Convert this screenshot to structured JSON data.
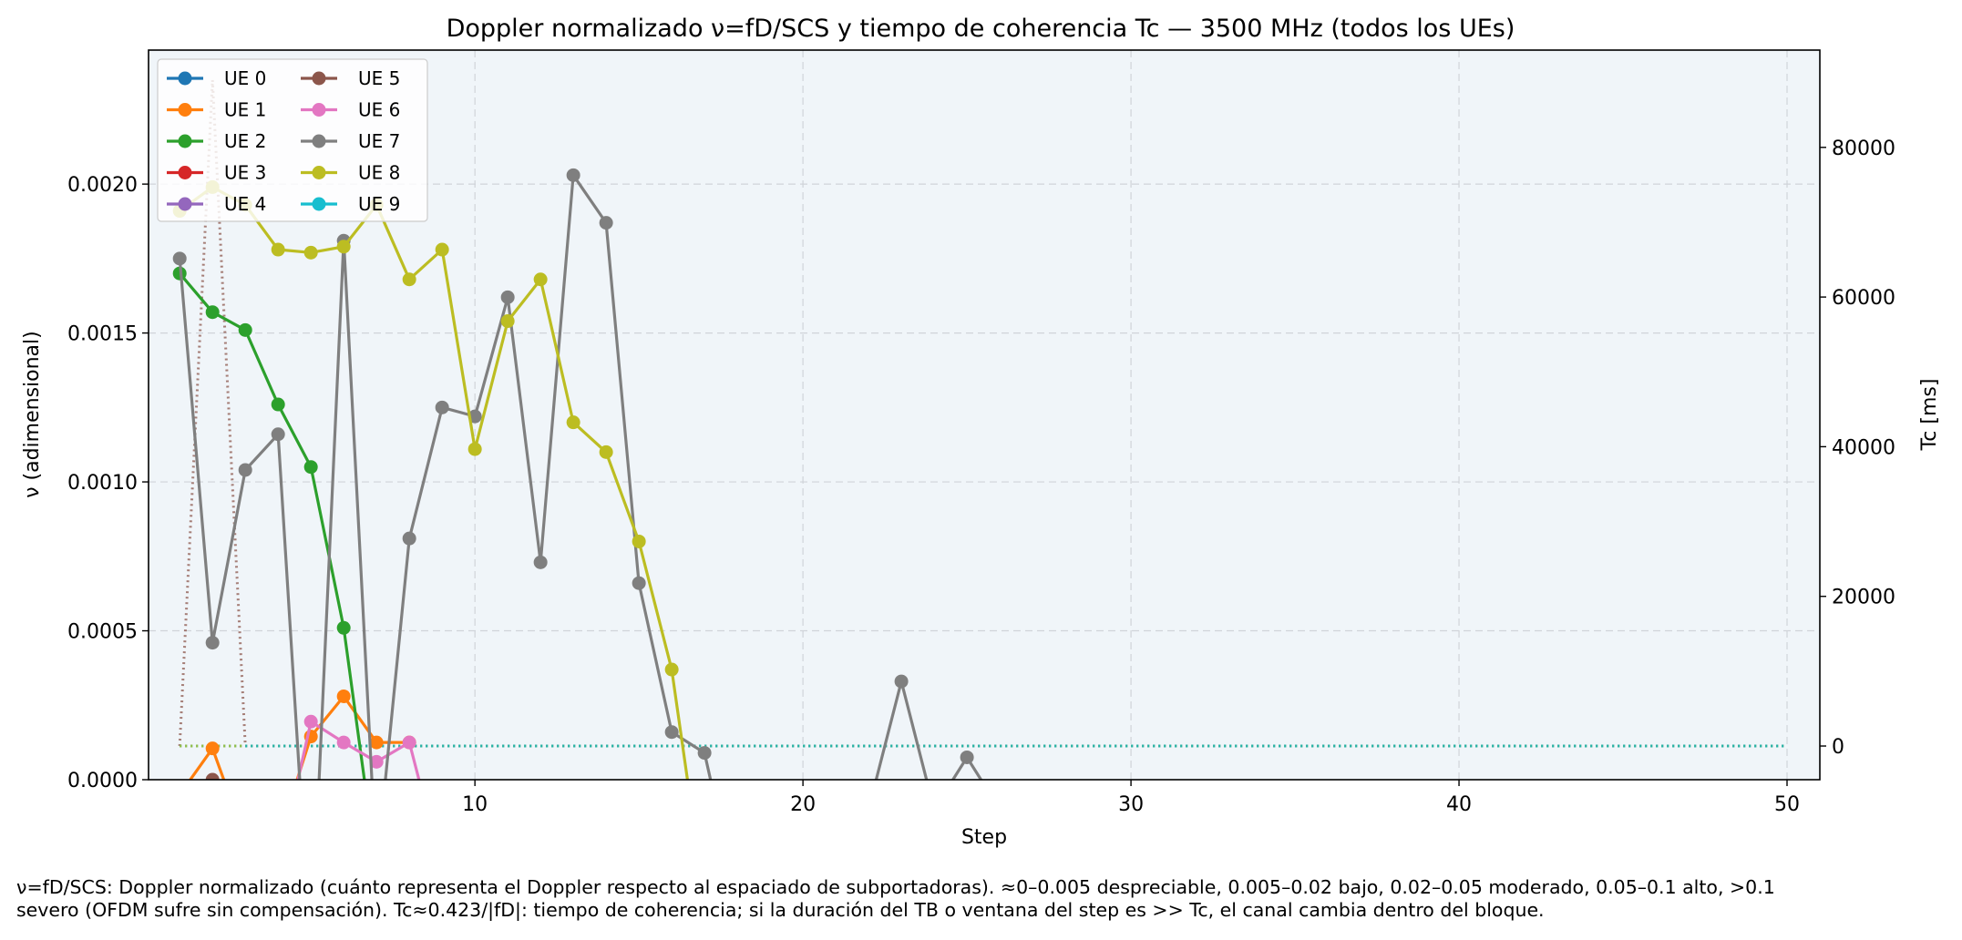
{
  "chart_data": {
    "type": "line",
    "title": "Doppler normalizado ν=fD/SCS y tiempo de coherencia Tc — 3500 MHz (todos los UEs)",
    "xlabel": "Step",
    "ylabel": "ν (adimensional)",
    "y2label": "Tc [ms]",
    "xlim": [
      0.05,
      51
    ],
    "ylim": [
      0,
      0.00245
    ],
    "y2lim": [
      -4500,
      93000
    ],
    "xticks": [
      10,
      20,
      30,
      40,
      50
    ],
    "yticks": [
      0,
      0.0005,
      0.001,
      0.0015,
      0.002
    ],
    "ytick_labels": [
      "0.0000",
      "0.0005",
      "0.0010",
      "0.0015",
      "0.0020"
    ],
    "y2ticks": [
      0,
      20000,
      40000,
      60000,
      80000
    ],
    "y2tick_labels": [
      "0",
      "20000",
      "40000",
      "60000",
      "80000"
    ],
    "grid": true,
    "legend_position": "top-left",
    "plot_background": "#f0f5f9",
    "series": [
      {
        "name": "UE 0",
        "color": "#1f77b4",
        "x": [],
        "y": []
      },
      {
        "name": "UE 1",
        "color": "#ff7f0e",
        "x": [
          1,
          2,
          3,
          4,
          5,
          6,
          7,
          8
        ],
        "y": [
          -5e-05,
          0.000105,
          -0.0002,
          -0.0002,
          0.000145,
          0.00028,
          0.000125,
          0.000125
        ]
      },
      {
        "name": "UE 2",
        "color": "#2ca02c",
        "x": [
          1,
          2,
          3,
          4,
          5,
          6,
          7
        ],
        "y": [
          0.0017,
          0.00157,
          0.00151,
          0.00126,
          0.00105,
          0.00051,
          -0.0003
        ]
      },
      {
        "name": "UE 3",
        "color": "#d62728",
        "x": [],
        "y": []
      },
      {
        "name": "UE 4",
        "color": "#9467bd",
        "x": [],
        "y": []
      },
      {
        "name": "UE 5",
        "color": "#8c564b",
        "x": [
          1,
          2,
          3
        ],
        "y": [
          -0.0001,
          0.0,
          -0.0001
        ]
      },
      {
        "name": "UE 6",
        "color": "#e377c2",
        "x": [
          4,
          5,
          6,
          7,
          8,
          9
        ],
        "y": [
          -0.0003,
          0.000195,
          0.000125,
          6e-05,
          0.000125,
          -0.0003
        ]
      },
      {
        "name": "UE 7",
        "color": "#7f7f7f",
        "x": [
          1,
          2,
          3,
          4,
          5,
          6,
          7,
          8,
          9,
          10,
          11,
          12,
          13,
          14,
          15,
          16,
          17,
          18,
          22,
          23,
          24,
          25,
          26
        ],
        "y": [
          0.00175,
          0.00046,
          0.00104,
          0.00116,
          -0.0006,
          0.00181,
          -0.0003,
          0.00081,
          0.00125,
          0.00122,
          0.00162,
          0.00073,
          0.00203,
          0.00187,
          0.00066,
          0.00016,
          9e-05,
          -0.0004,
          -0.0001,
          0.00033,
          -0.0001,
          7.5e-05,
          -0.0001
        ]
      },
      {
        "name": "UE 8",
        "color": "#bcbd22",
        "x": [
          1,
          2,
          3,
          4,
          5,
          6,
          7,
          8,
          9,
          10,
          11,
          12,
          13,
          14,
          15,
          16,
          17
        ],
        "y": [
          0.00191,
          0.00199,
          0.00193,
          0.00178,
          0.00177,
          0.00179,
          0.00193,
          0.00168,
          0.00178,
          0.00111,
          0.00154,
          0.00168,
          0.0012,
          0.0011,
          0.0008,
          0.00037,
          -0.0004
        ]
      },
      {
        "name": "UE 9",
        "color": "#17becf",
        "x": [],
        "y": []
      }
    ],
    "tc_series": [
      {
        "name": "UE 5",
        "color": "#8c564b",
        "x": [
          1,
          2,
          3,
          3.05,
          50
        ],
        "y": [
          0,
          89000,
          0,
          0,
          0
        ]
      },
      {
        "name": "UE 2",
        "color": "#2ca02c",
        "x": [
          1,
          50
        ],
        "y": [
          0,
          0
        ]
      },
      {
        "name": "UE 9",
        "color": "#17becf",
        "x": [
          1,
          50
        ],
        "y": [
          0,
          0
        ]
      },
      {
        "name": "UE 8",
        "color": "#bcbd22",
        "x": [
          1,
          2,
          3
        ],
        "y": [
          0,
          0,
          0
        ]
      }
    ]
  },
  "caption": {
    "line1": "ν=fD/SCS: Doppler normalizado (cuánto representa el Doppler respecto al espaciado de subportadoras). ≈0–0.005 despreciable, 0.005–0.02 bajo, 0.02–0.05 moderado, 0.05–0.1 alto, >0.1",
    "line2": "severo (OFDM sufre sin compensación). Tc≈0.423/|fD|: tiempo de coherencia; si la duración del TB o ventana del step es >> Tc, el canal cambia dentro del bloque."
  }
}
